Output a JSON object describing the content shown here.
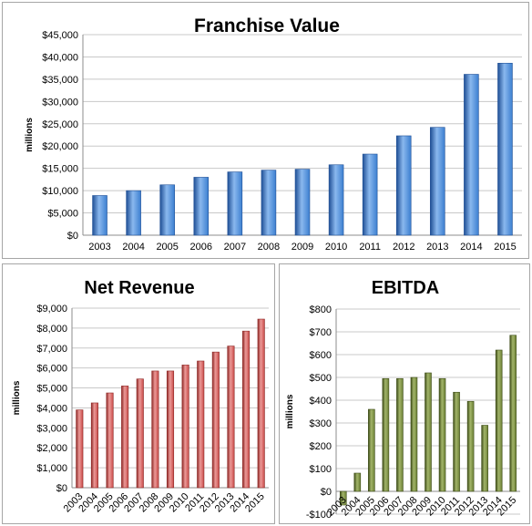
{
  "chart_data": [
    {
      "id": "fv",
      "type": "bar",
      "title": "Franchise Value",
      "ylabel": "millions",
      "categories": [
        "2003",
        "2004",
        "2005",
        "2006",
        "2007",
        "2008",
        "2009",
        "2010",
        "2011",
        "2012",
        "2013",
        "2014",
        "2015"
      ],
      "values": [
        8900,
        10000,
        11300,
        13000,
        14200,
        14600,
        14800,
        15800,
        18200,
        22300,
        24200,
        36100,
        38600
      ],
      "ylim": [
        0,
        45000
      ],
      "yticks": [
        0,
        5000,
        10000,
        15000,
        20000,
        25000,
        30000,
        35000,
        40000,
        45000
      ],
      "ytick_labels": [
        "$0",
        "$5,000",
        "$10,000",
        "$15,000",
        "$20,000",
        "$25,000",
        "$30,000",
        "$35,000",
        "$40,000",
        "$45,000"
      ],
      "grid": true,
      "bar_color": "#3c7fd0",
      "bar_dark": "#1f4f95",
      "bar_light": "#8ab8ee"
    },
    {
      "id": "nr",
      "type": "bar",
      "title": "Net Revenue",
      "ylabel": "millions",
      "categories": [
        "2003",
        "2004",
        "2005",
        "2006",
        "2007",
        "2008",
        "2009",
        "2010",
        "2011",
        "2012",
        "2013",
        "2014",
        "2015"
      ],
      "values": [
        3900,
        4250,
        4750,
        5100,
        5450,
        5850,
        5850,
        6150,
        6350,
        6800,
        7100,
        7850,
        8450
      ],
      "ylim": [
        0,
        9000
      ],
      "yticks": [
        0,
        1000,
        2000,
        3000,
        4000,
        5000,
        6000,
        7000,
        8000,
        9000
      ],
      "ytick_labels": [
        "$0",
        "$1,000",
        "$2,000",
        "$3,000",
        "$4,000",
        "$5,000",
        "$6,000",
        "$7,000",
        "$8,000",
        "$9,000"
      ],
      "grid": true,
      "bar_color": "#c84a48",
      "bar_dark": "#8e2826",
      "bar_light": "#ec9a98"
    },
    {
      "id": "eb",
      "type": "bar",
      "title": "EBITDA",
      "ylabel": "millions",
      "categories": [
        "2003",
        "2004",
        "2005",
        "2006",
        "2007",
        "2008",
        "2009",
        "2010",
        "2011",
        "2012",
        "2013",
        "2014",
        "2015"
      ],
      "values": [
        -60,
        80,
        360,
        495,
        495,
        500,
        520,
        495,
        435,
        395,
        290,
        620,
        685
      ],
      "ylim": [
        -100,
        800
      ],
      "yticks": [
        -100,
        0,
        100,
        200,
        300,
        400,
        500,
        600,
        700,
        800
      ],
      "ytick_labels": [
        "-$100",
        "$0",
        "$100",
        "$200",
        "$300",
        "$400",
        "$500",
        "$600",
        "$700",
        "$800"
      ],
      "grid": true,
      "bar_color": "#6b7f34",
      "bar_dark": "#3e4d18",
      "bar_light": "#a3b56a"
    }
  ]
}
